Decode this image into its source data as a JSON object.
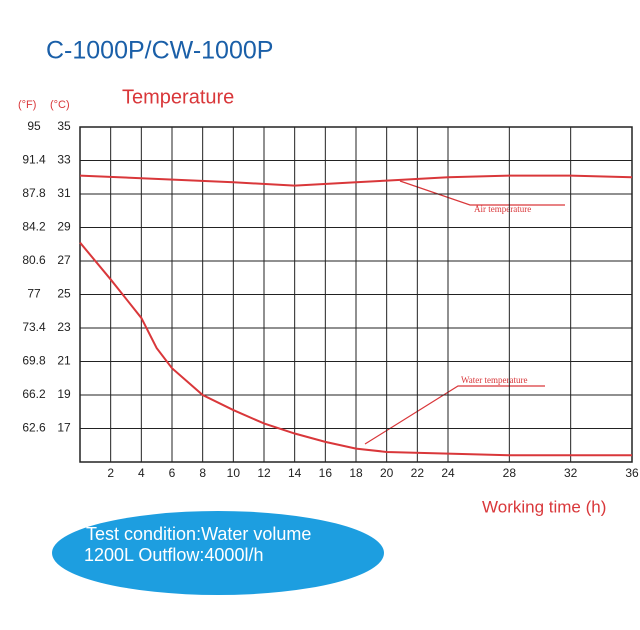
{
  "chart_data": {
    "type": "line",
    "title": "C-1000P/CW-1000P",
    "subtitle": "Temperature",
    "x_label": "Working time (h)",
    "y_label": "(°C)",
    "y2_label": "(°F)",
    "note": [
      "Test condition:Water volume",
      "1200L Outflow:4000l/h"
    ],
    "annotations": [
      "Air temperature",
      "Water temperature"
    ],
    "xlim": [
      0,
      36
    ],
    "xticks": [
      2,
      4,
      6,
      8,
      10,
      12,
      14,
      16,
      18,
      20,
      22,
      24,
      28,
      32,
      36
    ],
    "ylim": [
      15,
      35
    ],
    "yticks": [
      17,
      19,
      21,
      23,
      25,
      27,
      29,
      31,
      33,
      35
    ],
    "y2lim": [
      59,
      95
    ],
    "y2ticks": [
      62.6,
      66.2,
      69.8,
      73.4,
      77,
      80.6,
      84.2,
      87.8,
      91.4,
      95
    ],
    "grid": true,
    "series": [
      {
        "name": "Air temperature",
        "color": "#d9373a",
        "x": [
          0,
          10,
          14,
          18,
          20,
          24,
          28,
          32,
          36
        ],
        "values": [
          32.1,
          31.7,
          31.5,
          31.7,
          31.8,
          32.0,
          32.1,
          32.1,
          32.0
        ]
      },
      {
        "name": "Water temperature",
        "color": "#d9373a",
        "x": [
          0,
          2,
          4,
          5,
          6,
          8,
          10,
          12,
          14,
          16,
          18,
          20,
          24,
          28,
          36
        ],
        "values": [
          28.1,
          25.9,
          23.6,
          21.8,
          20.6,
          19.0,
          18.1,
          17.3,
          16.7,
          16.2,
          15.8,
          15.6,
          15.5,
          15.4,
          15.4
        ]
      }
    ]
  }
}
